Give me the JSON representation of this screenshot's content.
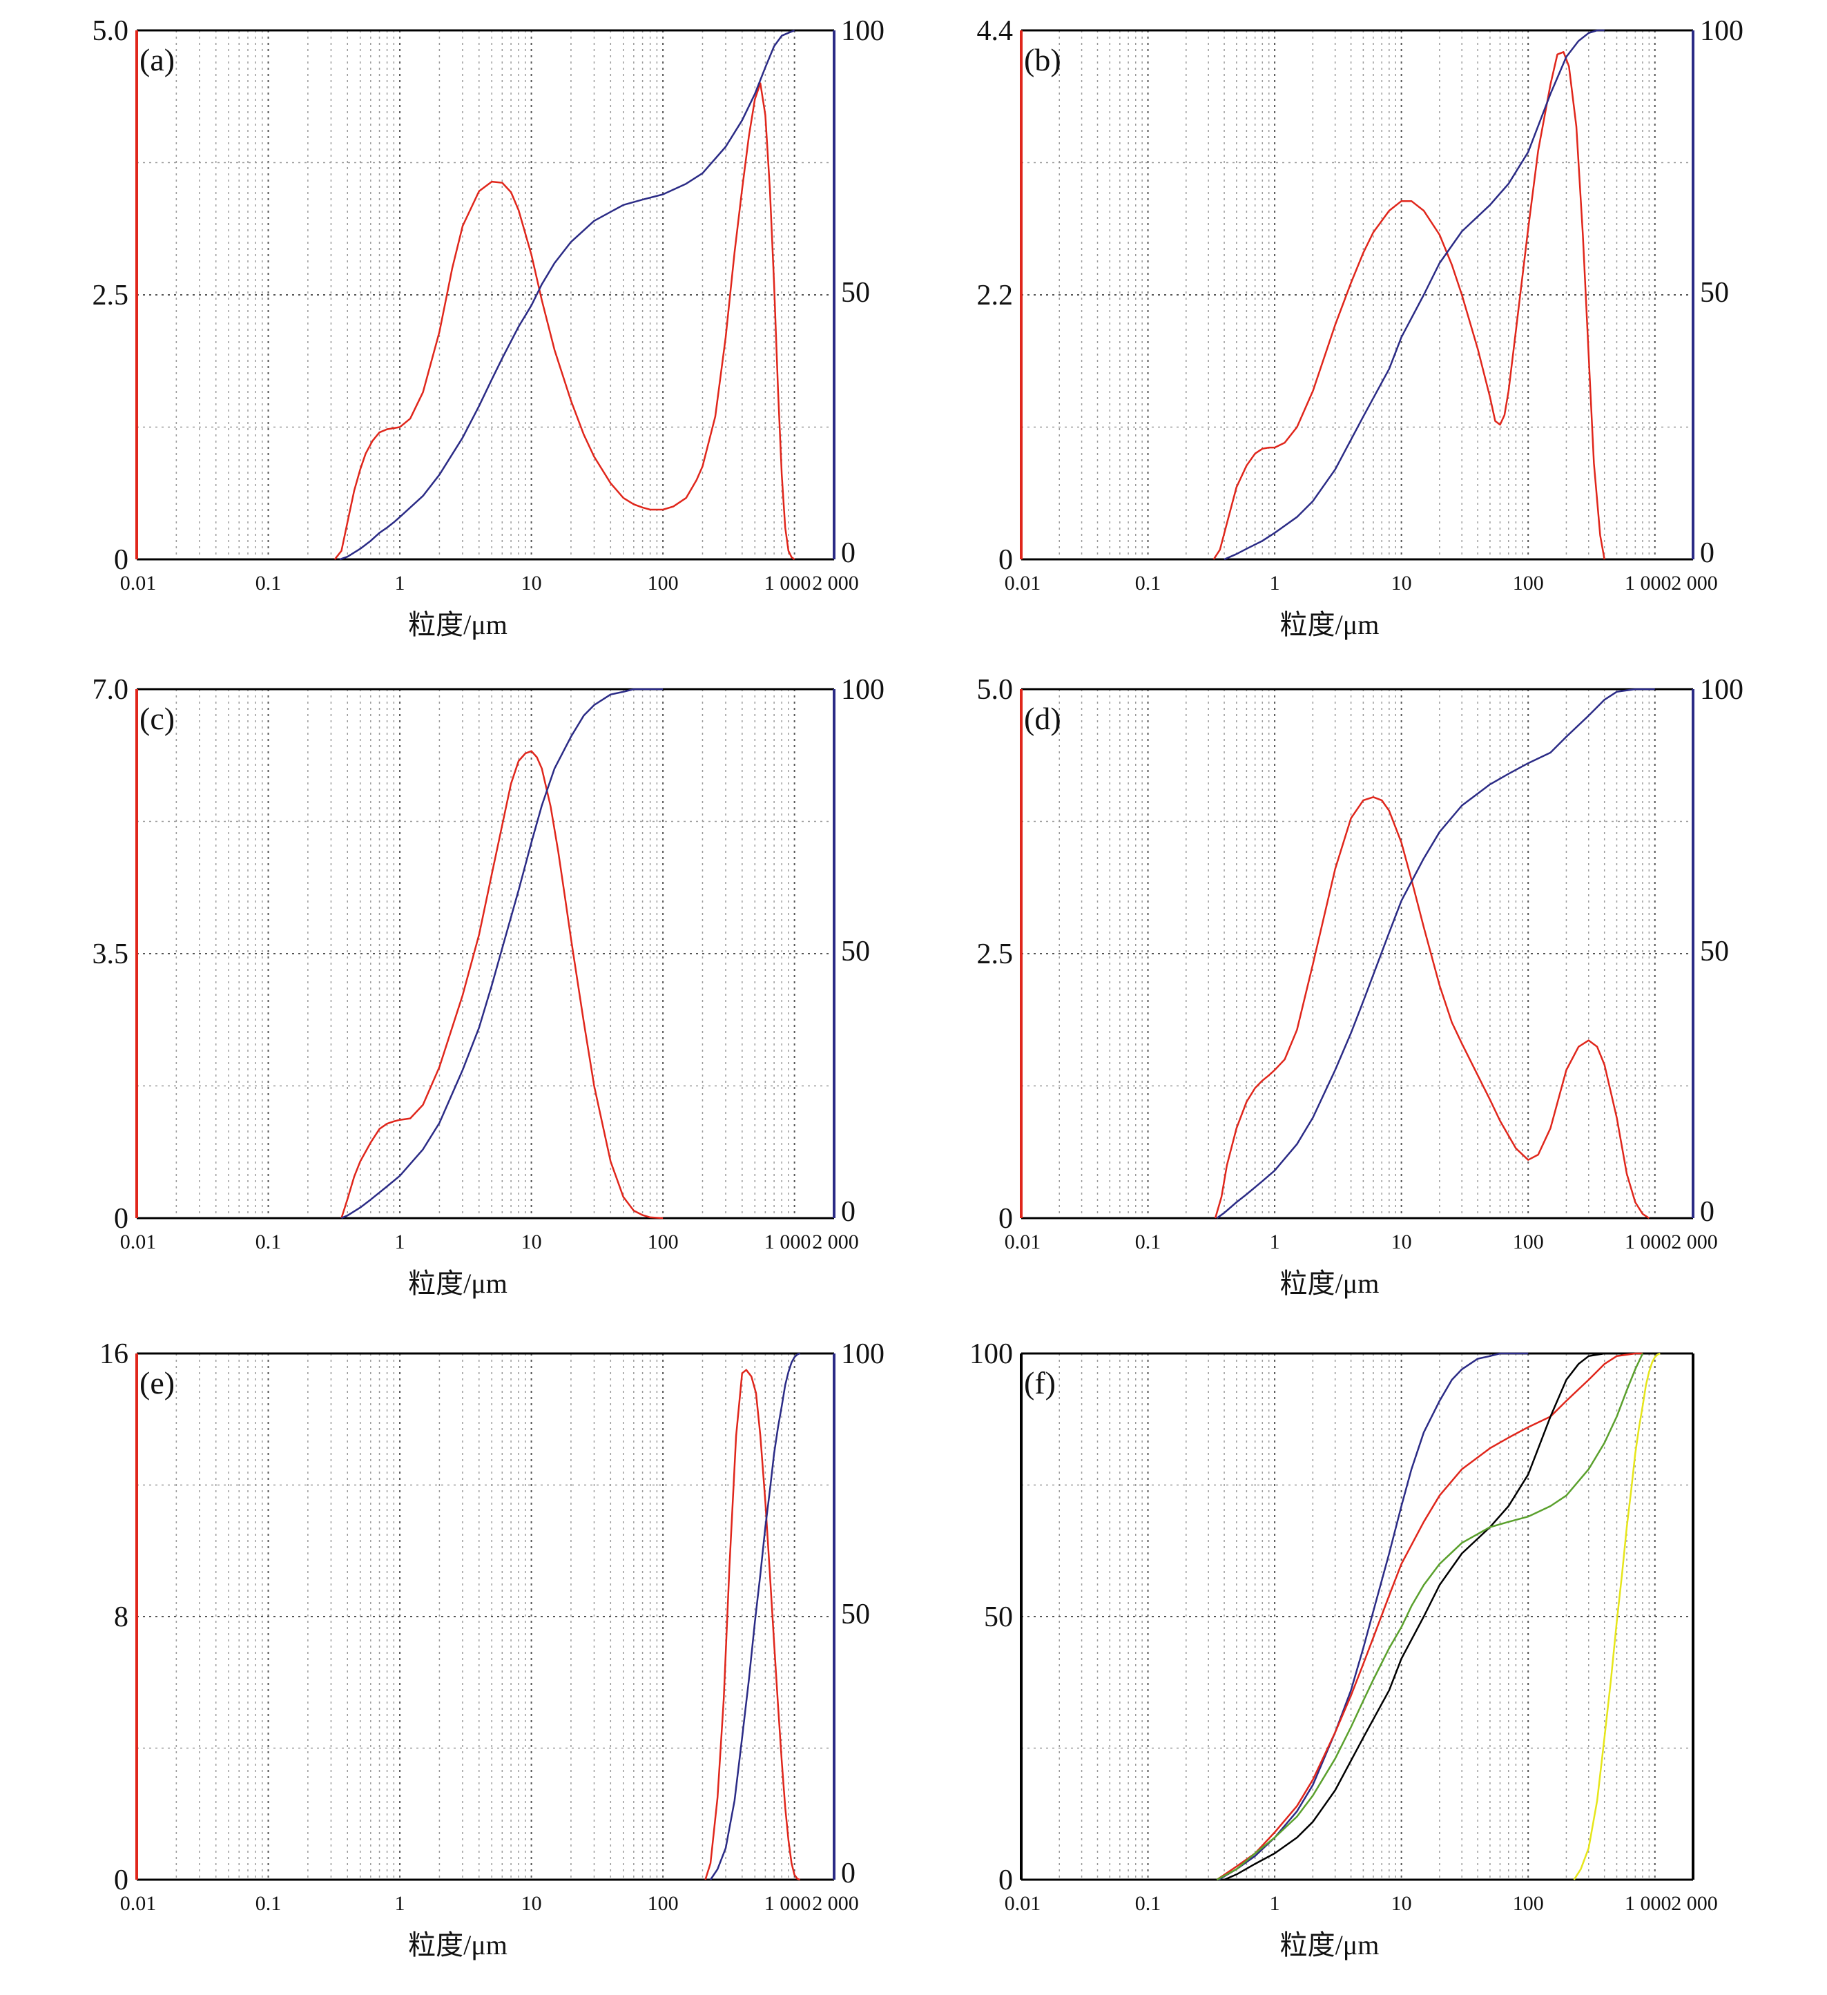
{
  "figure": {
    "x_tick_labels": [
      "0.01",
      "0.1",
      "1",
      "10",
      "100",
      "1 000",
      "2 000"
    ],
    "x_tick_values": [
      0.01,
      0.1,
      1,
      10,
      100,
      1000,
      2000
    ],
    "xlabel": "粒度/μm",
    "colors": {
      "frequency": "#e0261b",
      "cumulative": "#2b2b86",
      "left_axis": "#e0261b",
      "right_axis": "#2b2b86",
      "grid": "#9a9a9a",
      "f_black": "#000000",
      "f_green": "#5aa02c",
      "f_yellow": "#e6e619"
    }
  },
  "chart_data": [
    {
      "label": "(a)",
      "type": "line",
      "x_scale": "log",
      "xlim": [
        0.01,
        2000
      ],
      "ylim_left": [
        0,
        5.0
      ],
      "ylim_right": [
        0,
        100
      ],
      "left_tick_labels": [
        "0",
        "2.5",
        "5.0"
      ],
      "right_tick_labels": [
        "0",
        "50",
        "100"
      ],
      "xlabel": "粒度/μm",
      "series": [
        {
          "role": "frequency",
          "axis": "left",
          "color": "#e0261b",
          "x": [
            0.32,
            0.36,
            0.4,
            0.45,
            0.5,
            0.55,
            0.62,
            0.7,
            0.8,
            0.9,
            1.0,
            1.2,
            1.5,
            2,
            2.5,
            3,
            4,
            5,
            6,
            7,
            8,
            10,
            12,
            15,
            20,
            25,
            30,
            40,
            50,
            60,
            70,
            80,
            100,
            120,
            150,
            180,
            200,
            250,
            300,
            350,
            400,
            450,
            500,
            550,
            600,
            650,
            700,
            750,
            800,
            850,
            900,
            950,
            1000
          ],
          "y": [
            0,
            0.08,
            0.35,
            0.65,
            0.85,
            1.0,
            1.12,
            1.2,
            1.23,
            1.24,
            1.25,
            1.33,
            1.58,
            2.15,
            2.75,
            3.15,
            3.48,
            3.57,
            3.56,
            3.47,
            3.3,
            2.88,
            2.45,
            1.98,
            1.5,
            1.18,
            0.97,
            0.72,
            0.58,
            0.52,
            0.49,
            0.47,
            0.47,
            0.5,
            0.58,
            0.75,
            0.88,
            1.35,
            2.1,
            2.9,
            3.5,
            4.0,
            4.35,
            4.5,
            4.2,
            3.5,
            2.6,
            1.6,
            0.8,
            0.3,
            0.08,
            0.02,
            0
          ]
        },
        {
          "role": "cumulative",
          "axis": "right",
          "color": "#2b2b86",
          "x": [
            0.35,
            0.4,
            0.5,
            0.6,
            0.7,
            0.8,
            0.9,
            1,
            1.5,
            2,
            3,
            4,
            5,
            6,
            8,
            10,
            12,
            15,
            20,
            30,
            50,
            70,
            100,
            150,
            200,
            300,
            400,
            500,
            600,
            700,
            800,
            1000
          ],
          "y": [
            0,
            0.5,
            2,
            3.5,
            5,
            6,
            7,
            8,
            12,
            16,
            23,
            29,
            34,
            38,
            44,
            48,
            52,
            56,
            60,
            64,
            67,
            68,
            69,
            71,
            73,
            78,
            83,
            88,
            93,
            97,
            99,
            100
          ]
        }
      ]
    },
    {
      "label": "(b)",
      "type": "line",
      "x_scale": "log",
      "xlim": [
        0.01,
        2000
      ],
      "ylim_left": [
        0,
        4.4
      ],
      "ylim_right": [
        0,
        100
      ],
      "left_tick_labels": [
        "0",
        "2.2",
        "4.4"
      ],
      "right_tick_labels": [
        "0",
        "50",
        "100"
      ],
      "xlabel": "粒度/μm",
      "series": [
        {
          "role": "frequency",
          "axis": "left",
          "color": "#e0261b",
          "x": [
            0.33,
            0.37,
            0.42,
            0.5,
            0.6,
            0.7,
            0.8,
            0.9,
            1.0,
            1.2,
            1.5,
            2,
            3,
            4,
            5,
            6,
            8,
            10,
            12,
            15,
            20,
            25,
            30,
            40,
            50,
            55,
            60,
            65,
            70,
            80,
            100,
            120,
            150,
            170,
            190,
            210,
            240,
            270,
            300,
            330,
            370,
            400
          ],
          "y": [
            0,
            0.08,
            0.3,
            0.6,
            0.78,
            0.88,
            0.92,
            0.93,
            0.93,
            0.97,
            1.1,
            1.4,
            1.95,
            2.3,
            2.55,
            2.72,
            2.9,
            2.98,
            2.98,
            2.9,
            2.7,
            2.45,
            2.2,
            1.75,
            1.35,
            1.15,
            1.12,
            1.2,
            1.4,
            1.9,
            2.75,
            3.4,
            3.95,
            4.2,
            4.22,
            4.1,
            3.6,
            2.7,
            1.7,
            0.8,
            0.2,
            0
          ]
        },
        {
          "role": "cumulative",
          "axis": "right",
          "color": "#2b2b86",
          "x": [
            0.4,
            0.5,
            0.6,
            0.8,
            1,
            1.5,
            2,
            3,
            5,
            8,
            10,
            15,
            20,
            30,
            50,
            70,
            100,
            150,
            200,
            250,
            300,
            350,
            400
          ],
          "y": [
            0,
            1,
            2,
            3.5,
            5,
            8,
            11,
            17,
            27,
            36,
            42,
            50,
            56,
            62,
            67,
            71,
            77,
            88,
            95,
            98,
            99.5,
            100,
            100
          ]
        }
      ]
    },
    {
      "label": "(c)",
      "type": "line",
      "x_scale": "log",
      "xlim": [
        0.01,
        2000
      ],
      "ylim_left": [
        0,
        7.0
      ],
      "ylim_right": [
        0,
        100
      ],
      "left_tick_labels": [
        "0",
        "3.5",
        "7.0"
      ],
      "right_tick_labels": [
        "0",
        "50",
        "100"
      ],
      "xlabel": "粒度/μm",
      "series": [
        {
          "role": "frequency",
          "axis": "left",
          "color": "#e0261b",
          "x": [
            0.36,
            0.4,
            0.45,
            0.5,
            0.6,
            0.7,
            0.8,
            0.9,
            1.0,
            1.2,
            1.5,
            2,
            3,
            4,
            5,
            6,
            7,
            8,
            9,
            10,
            11,
            12,
            14,
            16,
            18,
            20,
            25,
            30,
            40,
            50,
            60,
            70,
            80,
            100
          ],
          "y": [
            0,
            0.25,
            0.55,
            0.75,
            1.0,
            1.18,
            1.25,
            1.28,
            1.3,
            1.32,
            1.5,
            2.0,
            2.95,
            3.75,
            4.55,
            5.2,
            5.75,
            6.05,
            6.15,
            6.18,
            6.1,
            5.95,
            5.45,
            4.85,
            4.25,
            3.7,
            2.6,
            1.75,
            0.75,
            0.28,
            0.1,
            0.04,
            0.01,
            0
          ]
        },
        {
          "role": "cumulative",
          "axis": "right",
          "color": "#2b2b86",
          "x": [
            0.36,
            0.4,
            0.5,
            0.6,
            0.8,
            1,
            1.5,
            2,
            3,
            4,
            5,
            6,
            8,
            10,
            12,
            15,
            20,
            25,
            30,
            40,
            50,
            60,
            80,
            100
          ],
          "y": [
            0,
            0.5,
            2,
            3.5,
            6,
            8,
            13,
            18,
            28,
            36,
            44,
            51,
            62,
            71,
            78,
            85,
            91,
            95,
            97,
            99,
            99.5,
            100,
            100,
            100
          ]
        }
      ]
    },
    {
      "label": "(d)",
      "type": "line",
      "x_scale": "log",
      "xlim": [
        0.01,
        2000
      ],
      "ylim_left": [
        0,
        5.0
      ],
      "ylim_right": [
        0,
        100
      ],
      "left_tick_labels": [
        "0",
        "2.5",
        "5.0"
      ],
      "right_tick_labels": [
        "0",
        "50",
        "100"
      ],
      "xlabel": "粒度/μm",
      "series": [
        {
          "role": "frequency",
          "axis": "left",
          "color": "#e0261b",
          "x": [
            0.34,
            0.38,
            0.42,
            0.5,
            0.6,
            0.7,
            0.8,
            0.9,
            1.0,
            1.2,
            1.5,
            2,
            3,
            4,
            5,
            6,
            7,
            8,
            10,
            12,
            15,
            20,
            25,
            30,
            40,
            50,
            60,
            70,
            80,
            100,
            120,
            150,
            180,
            200,
            250,
            300,
            350,
            400,
            500,
            600,
            700,
            800,
            900
          ],
          "y": [
            0,
            0.2,
            0.5,
            0.85,
            1.1,
            1.23,
            1.3,
            1.35,
            1.4,
            1.5,
            1.78,
            2.4,
            3.3,
            3.78,
            3.95,
            3.98,
            3.95,
            3.85,
            3.55,
            3.2,
            2.75,
            2.2,
            1.85,
            1.65,
            1.35,
            1.12,
            0.92,
            0.78,
            0.66,
            0.55,
            0.6,
            0.85,
            1.2,
            1.4,
            1.62,
            1.68,
            1.62,
            1.45,
            0.95,
            0.42,
            0.15,
            0.04,
            0
          ]
        },
        {
          "role": "cumulative",
          "axis": "right",
          "color": "#2b2b86",
          "x": [
            0.35,
            0.4,
            0.5,
            0.6,
            0.8,
            1,
            1.5,
            2,
            3,
            4,
            5,
            6,
            8,
            10,
            15,
            20,
            30,
            50,
            70,
            100,
            150,
            200,
            300,
            400,
            500,
            700,
            1000
          ],
          "y": [
            0,
            1,
            3,
            4.5,
            7,
            9,
            14,
            19,
            28,
            35,
            41,
            46,
            54,
            60,
            68,
            73,
            78,
            82,
            84,
            86,
            88,
            91,
            95,
            98,
            99.5,
            100,
            100
          ]
        }
      ]
    },
    {
      "label": "(e)",
      "type": "line",
      "x_scale": "log",
      "xlim": [
        0.01,
        2000
      ],
      "ylim_left": [
        0,
        16
      ],
      "ylim_right": [
        0,
        100
      ],
      "left_tick_labels": [
        "0",
        "8",
        "16"
      ],
      "right_tick_labels": [
        "0",
        "50",
        "100"
      ],
      "xlabel": "粒度/μm",
      "series": [
        {
          "role": "frequency",
          "axis": "left",
          "color": "#e0261b",
          "x": [
            210,
            230,
            260,
            290,
            320,
            360,
            400,
            430,
            470,
            510,
            550,
            600,
            650,
            700,
            750,
            800,
            850,
            900,
            950,
            1000,
            1050,
            1100
          ],
          "y": [
            0,
            0.5,
            2.5,
            5.5,
            9.5,
            13.5,
            15.4,
            15.5,
            15.3,
            14.8,
            13.5,
            11.5,
            9.3,
            7.2,
            5.3,
            3.6,
            2.2,
            1.2,
            0.5,
            0.15,
            0.03,
            0
          ]
        },
        {
          "role": "cumulative",
          "axis": "right",
          "color": "#2b2b86",
          "x": [
            230,
            260,
            300,
            350,
            400,
            450,
            500,
            550,
            600,
            650,
            700,
            750,
            800,
            850,
            900,
            950,
            1000,
            1050,
            1100
          ],
          "y": [
            0,
            2,
            6,
            15,
            27,
            38,
            49,
            58,
            67,
            74,
            81,
            86,
            90,
            94,
            96.5,
            98.3,
            99.3,
            99.8,
            100
          ]
        }
      ]
    },
    {
      "label": "(f)",
      "type": "line",
      "x_scale": "log",
      "xlim": [
        0.01,
        2000
      ],
      "ylim_left": [
        0,
        100
      ],
      "left_tick_labels": [
        "0",
        "50",
        "100"
      ],
      "right_tick_labels": [],
      "xlabel": "粒度/μm",
      "series": [
        {
          "role": "cumulative-c",
          "color": "#2b2b86",
          "x": [
            0.36,
            0.5,
            0.7,
            1,
            1.5,
            2,
            3,
            4,
            5,
            6,
            8,
            10,
            12,
            15,
            20,
            25,
            30,
            40,
            50,
            60,
            80,
            100
          ],
          "y": [
            0,
            2,
            4.5,
            8,
            13,
            18,
            28,
            36,
            44,
            51,
            62,
            71,
            78,
            85,
            91,
            95,
            97,
            99,
            99.5,
            100,
            100,
            100
          ]
        },
        {
          "role": "cumulative-d",
          "color": "#e0261b",
          "x": [
            0.35,
            0.5,
            0.7,
            1,
            1.5,
            2,
            3,
            4,
            5,
            6,
            8,
            10,
            15,
            20,
            30,
            50,
            70,
            100,
            150,
            200,
            300,
            400,
            500,
            700,
            800
          ],
          "y": [
            0,
            2.5,
            5,
            9,
            14,
            19,
            28,
            35,
            41,
            46,
            54,
            60,
            68,
            73,
            78,
            82,
            84,
            86,
            88,
            91,
            95,
            98,
            99.5,
            100,
            100
          ]
        },
        {
          "role": "cumulative-b",
          "color": "#000000",
          "x": [
            0.4,
            0.5,
            0.7,
            1,
            1.5,
            2,
            3,
            5,
            8,
            10,
            15,
            20,
            30,
            50,
            70,
            100,
            150,
            200,
            250,
            300,
            400
          ],
          "y": [
            0,
            1,
            3,
            5,
            8,
            11,
            17,
            27,
            36,
            42,
            50,
            56,
            62,
            67,
            71,
            77,
            88,
            95,
            98,
            99.5,
            100
          ]
        },
        {
          "role": "cumulative-a",
          "color": "#5aa02c",
          "x": [
            0.35,
            0.5,
            0.7,
            1,
            1.5,
            2,
            3,
            4,
            5,
            6,
            8,
            10,
            12,
            15,
            20,
            30,
            50,
            70,
            100,
            150,
            200,
            300,
            400,
            500,
            600,
            700,
            800
          ],
          "y": [
            0,
            2,
            5,
            8,
            12,
            16,
            23,
            29,
            34,
            38,
            44,
            48,
            52,
            56,
            60,
            64,
            67,
            68,
            69,
            71,
            73,
            78,
            83,
            88,
            93,
            97,
            100
          ]
        },
        {
          "role": "cumulative-e",
          "color": "#e6e619",
          "x": [
            230,
            260,
            300,
            350,
            400,
            450,
            500,
            550,
            600,
            650,
            700,
            750,
            800,
            850,
            900,
            950,
            1000,
            1050,
            1100
          ],
          "y": [
            0,
            2,
            6,
            15,
            27,
            38,
            49,
            58,
            67,
            74,
            81,
            86,
            90,
            94,
            96.5,
            98.3,
            99.3,
            99.8,
            100
          ]
        }
      ]
    }
  ]
}
